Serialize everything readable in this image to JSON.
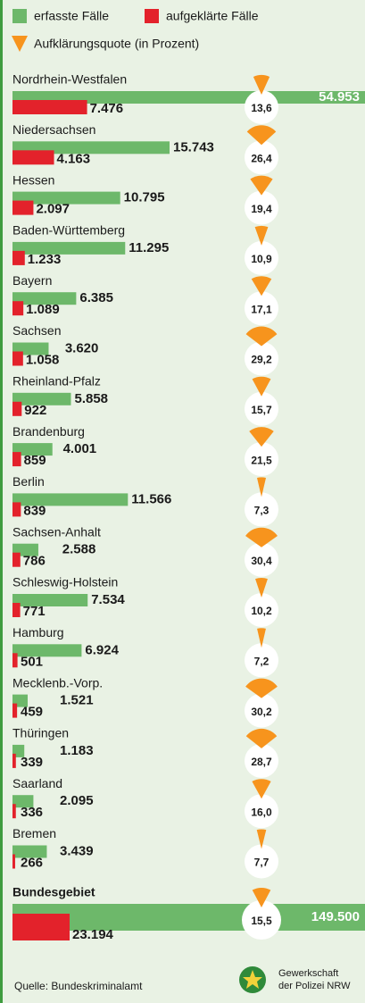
{
  "chart_data": {
    "type": "bar",
    "legend_quote": "Aufklärungsquote (in Prozent)",
    "categories": [
      "Nordrhein-Westfalen",
      "Niedersachsen",
      "Hessen",
      "Baden-Württemberg",
      "Bayern",
      "Sachsen",
      "Rheinland-Pfalz",
      "Brandenburg",
      "Berlin",
      "Sachsen-Anhalt",
      "Schleswig-Holstein",
      "Hamburg",
      "Mecklenb.-Vorp.",
      "Thüringen",
      "Saarland",
      "Bremen"
    ],
    "series": [
      {
        "name": "erfasste Fälle",
        "color": "#6db86a",
        "values": [
          54953,
          15743,
          10795,
          11295,
          6385,
          3620,
          5858,
          4001,
          11566,
          2588,
          7534,
          6924,
          1521,
          1183,
          2095,
          3439
        ],
        "value_labels": [
          "54.953",
          "15.743",
          "10.795",
          "11.295",
          "6.385",
          "3.620",
          "5.858",
          "4.001",
          "11.566",
          "2.588",
          "7.534",
          "6.924",
          "1.521",
          "1.183",
          "2.095",
          "3.439"
        ]
      },
      {
        "name": "aufgeklärte Fälle",
        "color": "#e3222b",
        "values": [
          7476,
          4163,
          2097,
          1233,
          1089,
          1058,
          922,
          859,
          839,
          786,
          771,
          501,
          459,
          339,
          336,
          266
        ],
        "value_labels": [
          "7.476",
          "4.163",
          "2.097",
          "1.233",
          "1.089",
          "1.058",
          "922",
          "859",
          "839",
          "786",
          "771",
          "501",
          "459",
          "339",
          "336",
          "266"
        ]
      },
      {
        "name": "Aufklärungsquote",
        "color": "#f7941d",
        "values": [
          13.6,
          26.4,
          19.4,
          10.9,
          17.1,
          29.2,
          15.7,
          21.5,
          7.3,
          30.4,
          10.2,
          7.2,
          30.2,
          28.7,
          16.0,
          7.7
        ],
        "value_labels": [
          "13,6",
          "26,4",
          "19,4",
          "10,9",
          "17,1",
          "29,2",
          "15,7",
          "21,5",
          "7,3",
          "30,4",
          "10,2",
          "7,2",
          "30,2",
          "28,7",
          "16,0",
          "7,7"
        ]
      }
    ],
    "total": {
      "name": "Bundesgebiet",
      "values": [
        149500,
        23194,
        15.5
      ],
      "value_labels": [
        "149.500",
        "23.194",
        "15,5"
      ]
    },
    "source": "Quelle: Bundeskriminalamt",
    "logo": [
      "Gewerkschaft",
      "der Polizei NRW"
    ]
  }
}
